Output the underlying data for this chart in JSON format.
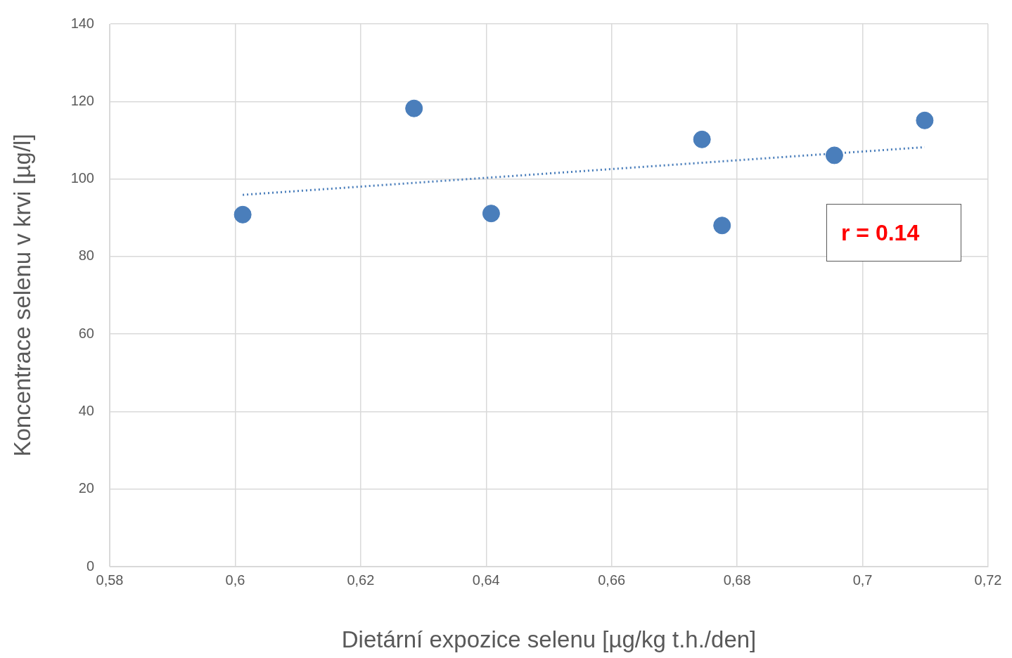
{
  "chart_data": {
    "type": "scatter",
    "xlabel": "Dietární expozice selenu [µg/kg t.h./den]",
    "ylabel": "Koncentrace selenu v krvi [µg/l]",
    "xlim": [
      0.58,
      0.72
    ],
    "xticks": [
      {
        "value": 0.58,
        "label": "0,58"
      },
      {
        "value": 0.6,
        "label": "0,6"
      },
      {
        "value": 0.62,
        "label": "0,62"
      },
      {
        "value": 0.64,
        "label": "0,64"
      },
      {
        "value": 0.66,
        "label": "0,66"
      },
      {
        "value": 0.68,
        "label": "0,68"
      },
      {
        "value": 0.7,
        "label": "0,7"
      },
      {
        "value": 0.72,
        "label": "0,72"
      }
    ],
    "ylim": [
      0,
      140
    ],
    "yticks": [
      0,
      20,
      40,
      60,
      80,
      100,
      120,
      140
    ],
    "grid": true,
    "legend": false,
    "marker": "circle",
    "series": [
      {
        "color": "#4a7ebb",
        "x": [
          0.6012,
          0.6285,
          0.6408,
          0.6744,
          0.6776,
          0.6955,
          0.7099
        ],
        "values": [
          90.8,
          118.2,
          91.1,
          110.2,
          88.0,
          106.1,
          115.1
        ]
      },
      {
        "type": "line",
        "color": "#4a7ebb",
        "x": [
          0.6012,
          0.7099
        ],
        "values": [
          95.9,
          108.2
        ],
        "line_style": "dotted",
        "marker": "none"
      }
    ],
    "annotations": [
      "r = 0.14"
    ]
  }
}
